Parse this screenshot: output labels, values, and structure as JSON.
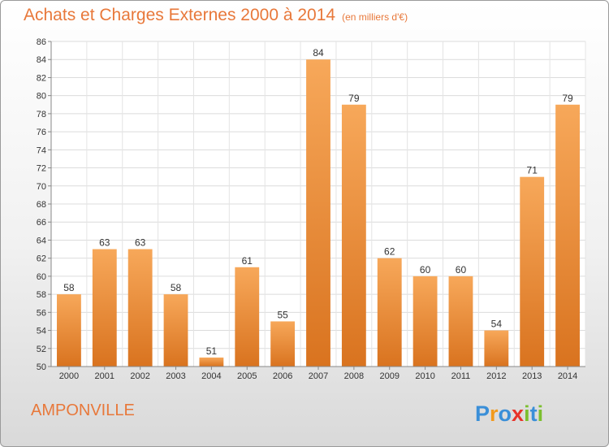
{
  "header": {
    "title": "Achats et Charges Externes 2000 à 2014",
    "unit": "(en milliers d'€)"
  },
  "footer": {
    "city": "AMPONVILLE",
    "logo_text": "Proxiti"
  },
  "colors": {
    "bar_light": "#F7A85A",
    "bar_dark": "#D9731F",
    "title": "#E8783A"
  },
  "chart_data": {
    "type": "bar",
    "title": "Achats et Charges Externes 2000 à 2014",
    "subtitle": "(en milliers d'€)",
    "xlabel": "",
    "ylabel": "",
    "categories": [
      "2000",
      "2001",
      "2002",
      "2003",
      "2004",
      "2005",
      "2006",
      "2007",
      "2008",
      "2009",
      "2010",
      "2011",
      "2012",
      "2013",
      "2014"
    ],
    "values": [
      58,
      63,
      63,
      58,
      51,
      61,
      55,
      84,
      79,
      62,
      60,
      60,
      54,
      71,
      79
    ],
    "ylim": [
      50,
      86
    ],
    "yticks": [
      50,
      52,
      54,
      56,
      58,
      60,
      62,
      64,
      66,
      68,
      70,
      72,
      74,
      76,
      78,
      80,
      82,
      84,
      86
    ],
    "grid": true,
    "legend": "none"
  }
}
